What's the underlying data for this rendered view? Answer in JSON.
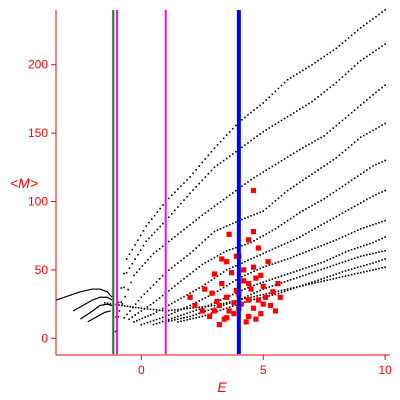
{
  "chart_data": {
    "type": "scatter",
    "xlabel": "E",
    "ylabel": "<M>",
    "xlim": [
      -3.5,
      10.2
    ],
    "ylim": [
      -10,
      240
    ],
    "x_ticks": [
      0,
      5,
      10
    ],
    "y_ticks": [
      0,
      50,
      100,
      150,
      200
    ],
    "grid": false,
    "legend": "none",
    "colors": {
      "axis": "#ff0000",
      "tick_labels": "#ff0000",
      "axis_labels": "#ff0000",
      "black_points": "#000000",
      "red_points": "#ff0000",
      "green_line": "#008000",
      "magenta_lines": "#ff00ff",
      "blue_line": "#0000ff"
    },
    "vertical_lines": [
      {
        "x": -1.15,
        "color": "#008000",
        "width": 2
      },
      {
        "x": -1.0,
        "color": "#ff00ff",
        "width": 2
      },
      {
        "x": 1.0,
        "color": "#ff00ff",
        "width": 2
      },
      {
        "x": 4.0,
        "color": "#0000ff",
        "width": 4
      }
    ],
    "series": [
      {
        "color": "#000000",
        "line_style": "dotted",
        "curves": [
          {
            "x": [
              -1.15,
              -0.6,
              0.2,
              1.0,
              2.0,
              3.0,
              4.0,
              5.0,
              6.0,
              7.0,
              8.0,
              9.0,
              10.0
            ],
            "y": [
              5,
              58,
              82,
              100,
              118,
              139,
              158,
              172,
              189,
              200,
              212,
              227,
              240
            ]
          },
          {
            "x": [
              -1.05,
              -0.6,
              0.2,
              1.0,
              2.0,
              3.0,
              4.0,
              5.0,
              6.0,
              7.0,
              8.0,
              9.0,
              10.0
            ],
            "y": [
              5,
              48,
              71,
              86,
              106,
              125,
              138,
              151,
              162,
              173,
              187,
              203,
              215
            ]
          },
          {
            "x": [
              -0.9,
              -0.3,
              0.5,
              1.5,
              2.5,
              3.5,
              4.5,
              5.5,
              6.5,
              7.5,
              8.5,
              9.5,
              10.0
            ],
            "y": [
              20,
              46,
              62,
              76,
              90,
              103,
              116,
              127,
              138,
              148,
              163,
              178,
              185
            ]
          },
          {
            "x": [
              -0.7,
              0.0,
              1.0,
              2.0,
              3.0,
              4.0,
              5.0,
              6.0,
              7.0,
              8.0,
              9.0,
              10.0
            ],
            "y": [
              15,
              30,
              48,
              62,
              78,
              86,
              93,
              108,
              120,
              132,
              147,
              157
            ]
          },
          {
            "x": [
              -0.5,
              0.5,
              1.5,
              2.5,
              3.5,
              4.5,
              5.5,
              6.5,
              7.5,
              8.5,
              9.5,
              10.0
            ],
            "y": [
              14,
              26,
              40,
              54,
              64,
              70,
              80,
              92,
              102,
              114,
              126,
              130
            ]
          },
          {
            "x": [
              -0.3,
              0.5,
              1.5,
              2.5,
              3.5,
              4.5,
              5.5,
              6.5,
              7.5,
              8.5,
              9.5,
              10.0
            ],
            "y": [
              12,
              18,
              28,
              38,
              50,
              58,
              66,
              74,
              84,
              94,
              104,
              108
            ]
          },
          {
            "x": [
              0.0,
              1.0,
              2.0,
              3.0,
              4.0,
              5.0,
              6.0,
              7.0,
              8.0,
              9.0,
              10.0
            ],
            "y": [
              10,
              16,
              24,
              33,
              44,
              52,
              58,
              65,
              72,
              80,
              86
            ]
          },
          {
            "x": [
              0.5,
              1.5,
              2.5,
              3.5,
              4.5,
              5.5,
              6.5,
              7.5,
              8.5,
              9.5,
              10.0
            ],
            "y": [
              10,
              16,
              22,
              30,
              38,
              44,
              50,
              56,
              64,
              70,
              74
            ]
          },
          {
            "x": [
              1.0,
              2.0,
              3.0,
              4.0,
              5.0,
              6.0,
              7.0,
              8.0,
              9.0,
              10.0
            ],
            "y": [
              12,
              16,
              22,
              28,
              36,
              42,
              48,
              54,
              60,
              64
            ]
          },
          {
            "x": [
              1.5,
              2.5,
              3.5,
              4.5,
              5.5,
              6.5,
              7.5,
              8.5,
              9.5,
              10.0
            ],
            "y": [
              12,
              16,
              22,
              28,
              32,
              38,
              44,
              50,
              55,
              58
            ]
          },
          {
            "x": [
              -1.5,
              -0.8,
              0.0,
              1.0,
              2.0,
              3.0,
              4.0,
              5.0,
              6.0,
              7.0,
              8.0,
              9.0,
              10.0
            ],
            "y": [
              26,
              24,
              22,
              20,
              22,
              24,
              28,
              32,
              36,
              40,
              44,
              48,
              52
            ]
          }
        ]
      },
      {
        "color": "#000000",
        "line_style": "solid",
        "curves": [
          {
            "x": [
              -3.5,
              -3.0,
              -2.5,
              -2.0,
              -1.7,
              -1.4,
              -1.2
            ],
            "y": [
              28,
              31,
              34,
              36,
              36,
              34,
              30
            ]
          },
          {
            "x": [
              -2.8,
              -2.4,
              -2.0,
              -1.7,
              -1.4,
              -1.2
            ],
            "y": [
              20,
              24,
              28,
              30,
              30,
              28
            ]
          },
          {
            "x": [
              -2.5,
              -2.0,
              -1.7,
              -1.4,
              -1.2
            ],
            "y": [
              14,
              20,
              24,
              25,
              24
            ]
          },
          {
            "x": [
              -2.2,
              -1.8,
              -1.5,
              -1.25
            ],
            "y": [
              12,
              16,
              19,
              20
            ]
          }
        ]
      },
      {
        "color": "#ff0000",
        "marker": "square",
        "points": [
          [
            4.3,
            12
          ],
          [
            3.4,
            14
          ],
          [
            2.8,
            16
          ],
          [
            3.0,
            20
          ],
          [
            3.6,
            20
          ],
          [
            4.0,
            22
          ],
          [
            4.6,
            22
          ],
          [
            3.2,
            24
          ],
          [
            3.8,
            26
          ],
          [
            4.4,
            28
          ],
          [
            4.8,
            28
          ],
          [
            5.1,
            30
          ],
          [
            2.5,
            20
          ],
          [
            3.5,
            30
          ],
          [
            4.0,
            32
          ],
          [
            4.5,
            36
          ],
          [
            5.0,
            38
          ],
          [
            3.3,
            40
          ],
          [
            3.7,
            48
          ],
          [
            4.2,
            50
          ],
          [
            4.6,
            52
          ],
          [
            5.2,
            56
          ],
          [
            3.5,
            56
          ],
          [
            4.0,
            60
          ],
          [
            3.9,
            60
          ],
          [
            4.9,
            46
          ],
          [
            5.4,
            34
          ],
          [
            5.7,
            30
          ],
          [
            2.9,
            33
          ],
          [
            3.1,
            27
          ],
          [
            3.8,
            18
          ],
          [
            4.4,
            16
          ],
          [
            4.9,
            18
          ],
          [
            5.3,
            24
          ],
          [
            5.6,
            40
          ],
          [
            4.8,
            66
          ],
          [
            4.4,
            72
          ],
          [
            4.6,
            78
          ],
          [
            3.6,
            76
          ],
          [
            4.6,
            108
          ],
          [
            3.3,
            58
          ],
          [
            4.2,
            42
          ],
          [
            4.7,
            44
          ],
          [
            3.0,
            47
          ],
          [
            2.6,
            36
          ],
          [
            2.2,
            24
          ],
          [
            2.0,
            30
          ],
          [
            4.1,
            25
          ],
          [
            3.9,
            35
          ],
          [
            4.4,
            40
          ],
          [
            5.0,
            25
          ],
          [
            5.5,
            20
          ],
          [
            3.5,
            15
          ],
          [
            3.2,
            10
          ],
          [
            4.7,
            14
          ]
        ]
      }
    ]
  }
}
